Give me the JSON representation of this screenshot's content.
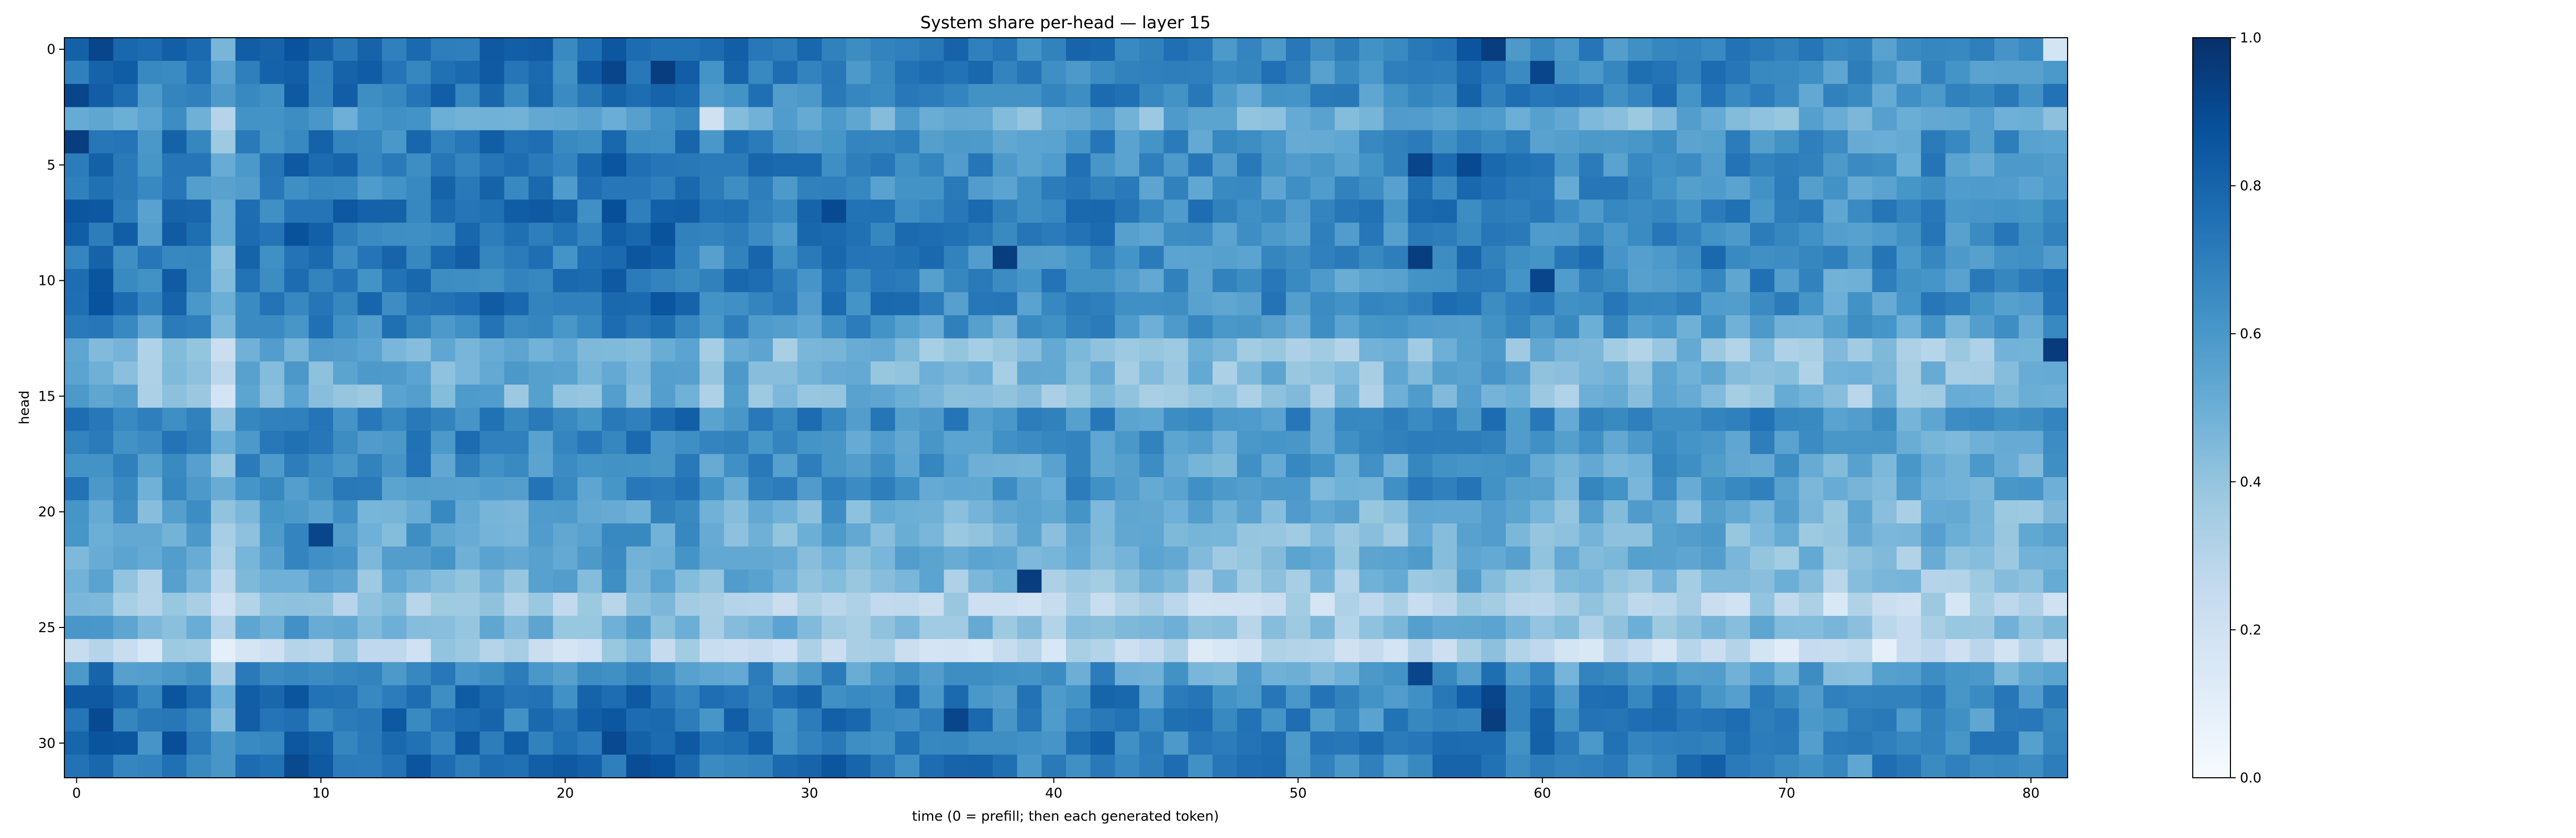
{
  "chart_data": {
    "type": "heatmap",
    "title": "System share per-head — layer 15",
    "xlabel": "time (0 = prefill; then each generated token)",
    "ylabel": "head",
    "n_cols": 82,
    "n_rows": 32,
    "x_ticks": [
      0,
      10,
      20,
      30,
      40,
      50,
      60,
      70,
      80
    ],
    "y_ticks": [
      0,
      5,
      10,
      15,
      20,
      25,
      30
    ],
    "colorbar": {
      "ticks": [
        0.0,
        0.2,
        0.4,
        0.6,
        0.8,
        1.0
      ],
      "tick_labels": [
        "0.0",
        "0.2",
        "0.4",
        "0.6",
        "0.8",
        "1.0"
      ],
      "vmin": 0.0,
      "vmax": 1.0
    },
    "colormap": "Blues",
    "colormap_stops": [
      "#f7fbff",
      "#deebf7",
      "#c6dbef",
      "#9ecae1",
      "#6baed6",
      "#4292c6",
      "#2171b5",
      "#08519c",
      "#08306b"
    ],
    "row_means": [
      0.72,
      0.7,
      0.68,
      0.52,
      0.66,
      0.68,
      0.66,
      0.7,
      0.69,
      0.7,
      0.67,
      0.68,
      0.62,
      0.44,
      0.48,
      0.46,
      0.66,
      0.62,
      0.6,
      0.6,
      0.52,
      0.5,
      0.5,
      0.45,
      0.32,
      0.44,
      0.26,
      0.6,
      0.7,
      0.7,
      0.72,
      0.72
    ],
    "col_adjust": [
      0.06,
      0.1,
      0.04,
      -0.06,
      0.06,
      0.02,
      -0.18,
      0.02,
      0.04,
      0.08,
      0.04,
      0.04,
      0.02,
      0.04,
      0.04,
      0.04,
      0.04,
      0.06,
      0.02,
      0.04,
      0.02,
      0.04,
      0.08,
      0.08,
      0.08,
      0.06,
      -0.04,
      0.02,
      0.02,
      0.0,
      0.0,
      0.04,
      0.0,
      0.0,
      0.0,
      0.0,
      -0.02,
      -0.02,
      -0.04,
      -0.04,
      -0.02,
      0.0,
      0.0,
      -0.02,
      -0.04,
      -0.04,
      -0.04,
      -0.04,
      -0.06,
      -0.04,
      -0.04,
      -0.06,
      -0.06,
      -0.04,
      -0.04,
      0.02,
      0.04,
      0.04,
      0.06,
      -0.02,
      0.0,
      -0.04,
      -0.02,
      -0.04,
      -0.04,
      0.0,
      -0.02,
      0.0,
      -0.04,
      0.0,
      -0.04,
      -0.06,
      -0.08,
      -0.08,
      -0.06,
      -0.08,
      -0.04,
      -0.06,
      -0.06,
      -0.06,
      -0.06,
      -0.02
    ],
    "highlights": [
      {
        "head": 0,
        "t": 1,
        "value": 0.92
      },
      {
        "head": 0,
        "t": 58,
        "value": 0.95
      },
      {
        "head": 0,
        "t": 81,
        "value": 0.18
      },
      {
        "head": 1,
        "t": 22,
        "value": 0.92
      },
      {
        "head": 1,
        "t": 24,
        "value": 0.95
      },
      {
        "head": 1,
        "t": 60,
        "value": 0.92
      },
      {
        "head": 2,
        "t": 0,
        "value": 0.92
      },
      {
        "head": 3,
        "t": 26,
        "value": 0.2
      },
      {
        "head": 4,
        "t": 0,
        "value": 0.95
      },
      {
        "head": 5,
        "t": 55,
        "value": 0.92
      },
      {
        "head": 5,
        "t": 57,
        "value": 0.9
      },
      {
        "head": 7,
        "t": 31,
        "value": 0.9
      },
      {
        "head": 9,
        "t": 38,
        "value": 0.95
      },
      {
        "head": 9,
        "t": 55,
        "value": 0.95
      },
      {
        "head": 10,
        "t": 60,
        "value": 0.92
      },
      {
        "head": 13,
        "t": 81,
        "value": 0.96
      },
      {
        "head": 21,
        "t": 10,
        "value": 0.92
      },
      {
        "head": 23,
        "t": 39,
        "value": 0.95
      },
      {
        "head": 27,
        "t": 55,
        "value": 0.92
      },
      {
        "head": 28,
        "t": 58,
        "value": 0.92
      },
      {
        "head": 29,
        "t": 58,
        "value": 0.95
      },
      {
        "head": 29,
        "t": 36,
        "value": 0.92
      }
    ]
  }
}
